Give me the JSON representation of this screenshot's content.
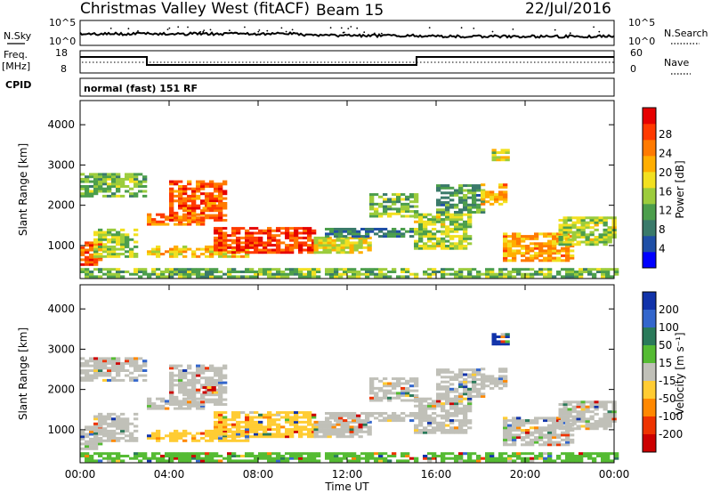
{
  "header": {
    "title": "Christmas Valley West (fitACF)",
    "beam": "Beam 15",
    "date": "22/Jul/2016"
  },
  "nsky_panel": {
    "left_label": "N.Sky",
    "right_label": "N.Search",
    "left_ticks": [
      "10^5",
      "10^0"
    ],
    "right_ticks": [
      "10^5",
      "10^0"
    ]
  },
  "freq_panel": {
    "left_label_1": "Freq.",
    "left_label_2": "[MHz]",
    "right_label": "Nave",
    "left_ticks": [
      "18",
      "8"
    ],
    "right_ticks": [
      "60",
      "0"
    ]
  },
  "cpid": {
    "label": "CPID",
    "text": "normal (fast) 151 RF"
  },
  "chart_data": [
    {
      "type": "heatmap",
      "name": "power-panel",
      "title": "",
      "xlabel": "Time UT",
      "ylabel": "Slant Range [km]",
      "xlim": [
        0,
        24
      ],
      "ylim": [
        180,
        4600
      ],
      "x_ticks": [
        "00:00",
        "04:00",
        "08:00",
        "12:00",
        "16:00",
        "20:00",
        "00:00"
      ],
      "y_ticks": [
        "1000",
        "2000",
        "3000",
        "4000"
      ],
      "colorbar": {
        "label": "Power [dB]",
        "ticks": [
          "4",
          "8",
          "12",
          "16",
          "20",
          "24",
          "28"
        ],
        "colors": [
          "#0000ff",
          "#1f4fa6",
          "#3a7a6a",
          "#4c9e4c",
          "#9ccc3c",
          "#f2e020",
          "#ffae00",
          "#ff7a00",
          "#ff3a00",
          "#e60000"
        ]
      }
    },
    {
      "type": "heatmap",
      "name": "velocity-panel",
      "title": "",
      "xlabel": "Time UT",
      "ylabel": "Slant Range [km]",
      "xlim": [
        0,
        24
      ],
      "ylim": [
        180,
        4600
      ],
      "x_ticks": [
        "00:00",
        "04:00",
        "08:00",
        "12:00",
        "16:00",
        "20:00",
        "00:00"
      ],
      "y_ticks": [
        "1000",
        "2000",
        "3000",
        "4000"
      ],
      "colorbar": {
        "label": "Velocity [m s⁻¹]",
        "ticks": [
          "200",
          "100",
          "50",
          "15",
          "-15",
          "-50",
          "-100",
          "-200"
        ],
        "colors": [
          "#1133aa",
          "#3366cc",
          "#2a7a5a",
          "#55bb33",
          "#c0c0b8",
          "#ffcc33",
          "#ff8800",
          "#ee3300",
          "#cc0000"
        ]
      }
    }
  ]
}
